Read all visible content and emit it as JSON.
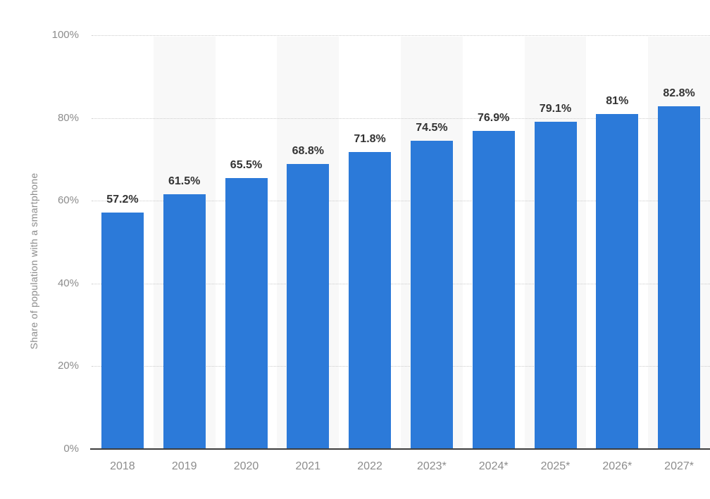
{
  "chart_data": {
    "type": "bar",
    "title": "",
    "xlabel": "",
    "ylabel": "Share of population with a smartphone",
    "categories": [
      "2018",
      "2019",
      "2020",
      "2021",
      "2022",
      "2023*",
      "2024*",
      "2025*",
      "2026*",
      "2027*"
    ],
    "values": [
      57.2,
      61.5,
      65.5,
      68.8,
      71.8,
      74.5,
      76.9,
      79.1,
      81,
      82.8
    ],
    "value_labels": [
      "57.2%",
      "61.5%",
      "65.5%",
      "68.8%",
      "71.8%",
      "74.5%",
      "76.9%",
      "79.1%",
      "81%",
      "82.8%"
    ],
    "ylim": [
      0,
      100
    ],
    "yticks": [
      0,
      20,
      40,
      60,
      80,
      100
    ],
    "ytick_labels": [
      "0%",
      "20%",
      "40%",
      "60%",
      "80%",
      "100%"
    ],
    "grid": "horizontal-dotted",
    "legend_position": "none",
    "colors": {
      "bar": "#2C7AD9",
      "stripe": "#f8f8f8",
      "gridline": "#cccccc",
      "axis_line": "#3d3d3d",
      "tick_label": "#8c8c8c",
      "value_label": "#333333",
      "background": "#ffffff"
    }
  }
}
